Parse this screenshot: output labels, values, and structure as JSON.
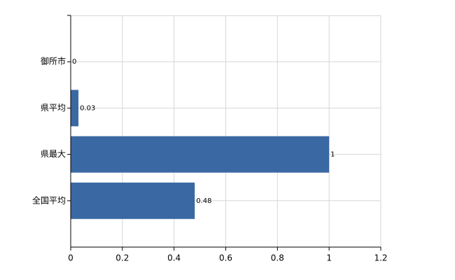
{
  "chart_data": {
    "type": "bar",
    "orientation": "horizontal",
    "categories": [
      "御所市",
      "県平均",
      "県最大",
      "全国平均"
    ],
    "values": [
      0,
      0.03,
      1,
      0.48
    ],
    "color": "#3a68a3",
    "xlim": [
      0,
      1.2
    ],
    "xticks": [
      0,
      0.2,
      0.4,
      0.6,
      0.8,
      1,
      1.2
    ],
    "grid": true
  }
}
